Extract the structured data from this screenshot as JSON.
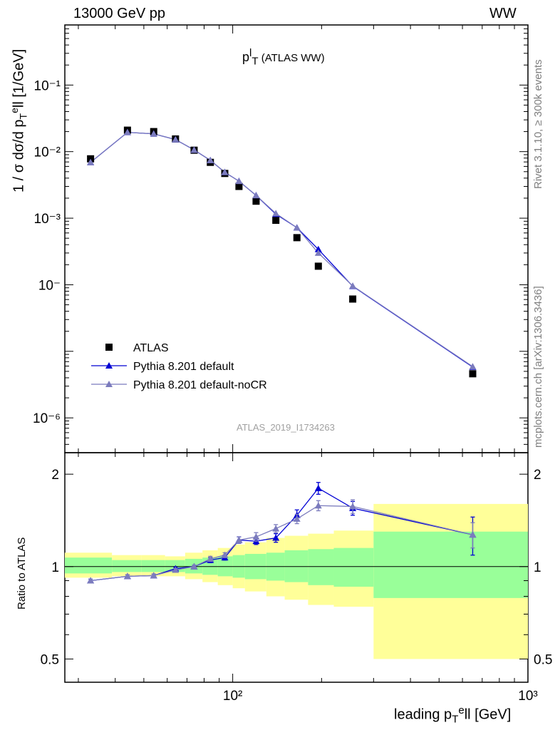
{
  "header": {
    "left": "13000 GeV pp",
    "right": "WW"
  },
  "side_texts": {
    "rivet": "Rivet 3.1.10, ≥ 300k events",
    "mcplots": "mcplots.cern.ch [arXiv:1306.3436]"
  },
  "plot_title": {
    "main": "p",
    "sup": "l",
    "sub": "T",
    "suffix": " (ATLAS WW)"
  },
  "watermark": "ATLAS_2019_I1734263",
  "y_label_main": "1 / σ  dσ/d p",
  "y_label_main_sub": "T",
  "y_label_main_sup": "e",
  "y_label_main_tail": "ll [1/GeV]",
  "y_label_ratio": "Ratio to ATLAS",
  "x_label": "leading p",
  "x_label_sub": "T",
  "x_label_sup": "e",
  "x_label_tail": "ll [GeV]",
  "colors": {
    "data": "#000000",
    "pythia_default": "#0000d4",
    "pythia_nocr": "#7b7bbd",
    "band_inner": "#99ff99",
    "band_outer": "#ffff99"
  },
  "chart_data": [
    {
      "type": "scatter",
      "panel": "main",
      "log_x": true,
      "log_y": true,
      "xlim": [
        27,
        1000
      ],
      "ylim": [
        3e-07,
        0.8
      ],
      "y_tick_labels": [
        "10⁻¹",
        "10⁻²",
        "10⁻³",
        "10⁻",
        "10⁻⁶"
      ],
      "y_tick_values": [
        0.1,
        0.01,
        0.001,
        0.0001,
        1e-06
      ],
      "legend_position": "bottom-left",
      "series": [
        {
          "name": "ATLAS",
          "marker": "square",
          "x": [
            33,
            44,
            54,
            64,
            74,
            84,
            94,
            105,
            120,
            140,
            165,
            195,
            255,
            650
          ],
          "values": [
            0.0078,
            0.021,
            0.02,
            0.0155,
            0.0105,
            0.0069,
            0.0047,
            0.003,
            0.0018,
            0.00093,
            0.00051,
            0.00019,
            6.1e-05,
            4.6e-06
          ]
        },
        {
          "name": "Pythia 8.201 default",
          "marker": "triangle",
          "x": [
            33,
            44,
            54,
            64,
            74,
            84,
            94,
            105,
            120,
            140,
            165,
            195,
            255,
            650
          ],
          "values": [
            0.0069,
            0.0195,
            0.0185,
            0.0152,
            0.0106,
            0.0074,
            0.0049,
            0.0036,
            0.0022,
            0.00115,
            0.00072,
            0.00034,
            9.5e-05,
            5.8e-06
          ]
        },
        {
          "name": "Pythia 8.201 default-noCR",
          "marker": "triangle",
          "x": [
            33,
            44,
            54,
            64,
            74,
            84,
            94,
            105,
            120,
            140,
            165,
            195,
            255,
            650
          ],
          "values": [
            0.0069,
            0.0195,
            0.0185,
            0.0152,
            0.0106,
            0.0074,
            0.0049,
            0.0036,
            0.0022,
            0.00118,
            0.00072,
            0.0003,
            9.6e-05,
            5.9e-06
          ]
        }
      ]
    },
    {
      "type": "line",
      "panel": "ratio",
      "log_x": true,
      "xlim": [
        27,
        1000
      ],
      "ylim": [
        0.42,
        2.35
      ],
      "y_tick_labels": [
        "0.5",
        "1",
        "2"
      ],
      "y_tick_values": [
        0.5,
        1,
        2
      ],
      "x_tick_labels": [
        "10²",
        "10³"
      ],
      "x_tick_values": [
        100,
        1000
      ],
      "uncertainty_bins": [
        {
          "lo": 27,
          "hi": 39,
          "inner": [
            0.95,
            1.07
          ],
          "outer": [
            0.92,
            1.11
          ]
        },
        {
          "lo": 39,
          "hi": 49,
          "inner": [
            0.96,
            1.05
          ],
          "outer": [
            0.93,
            1.09
          ]
        },
        {
          "lo": 49,
          "hi": 59,
          "inner": [
            0.96,
            1.05
          ],
          "outer": [
            0.93,
            1.09
          ]
        },
        {
          "lo": 59,
          "hi": 69,
          "inner": [
            0.96,
            1.05
          ],
          "outer": [
            0.93,
            1.08
          ]
        },
        {
          "lo": 69,
          "hi": 79,
          "inner": [
            0.95,
            1.06
          ],
          "outer": [
            0.91,
            1.11
          ]
        },
        {
          "lo": 79,
          "hi": 89,
          "inner": [
            0.94,
            1.07
          ],
          "outer": [
            0.89,
            1.13
          ]
        },
        {
          "lo": 89,
          "hi": 100,
          "inner": [
            0.93,
            1.08
          ],
          "outer": [
            0.87,
            1.15
          ]
        },
        {
          "lo": 100,
          "hi": 110,
          "inner": [
            0.92,
            1.09
          ],
          "outer": [
            0.85,
            1.18
          ]
        },
        {
          "lo": 110,
          "hi": 130,
          "inner": [
            0.91,
            1.1
          ],
          "outer": [
            0.83,
            1.2
          ]
        },
        {
          "lo": 130,
          "hi": 150,
          "inner": [
            0.9,
            1.11
          ],
          "outer": [
            0.8,
            1.24
          ]
        },
        {
          "lo": 150,
          "hi": 180,
          "inner": [
            0.89,
            1.13
          ],
          "outer": [
            0.78,
            1.26
          ]
        },
        {
          "lo": 180,
          "hi": 220,
          "inner": [
            0.87,
            1.14
          ],
          "outer": [
            0.75,
            1.28
          ]
        },
        {
          "lo": 220,
          "hi": 300,
          "inner": [
            0.86,
            1.15
          ],
          "outer": [
            0.74,
            1.31
          ]
        },
        {
          "lo": 300,
          "hi": 1000,
          "inner": [
            0.79,
            1.3
          ],
          "outer": [
            0.5,
            1.6
          ]
        }
      ],
      "series": [
        {
          "name": "Pythia 8.201 default",
          "x": [
            33,
            44,
            54,
            64,
            74,
            84,
            94,
            105,
            120,
            140,
            165,
            195,
            255,
            650
          ],
          "values": [
            0.9,
            0.93,
            0.935,
            0.985,
            1.0,
            1.05,
            1.07,
            1.22,
            1.21,
            1.24,
            1.47,
            1.8,
            1.55,
            1.27
          ],
          "errors": [
            0.01,
            0.01,
            0.01,
            0.01,
            0.01,
            0.02,
            0.02,
            0.03,
            0.03,
            0.04,
            0.06,
            0.08,
            0.08,
            0.18
          ]
        },
        {
          "name": "Pythia 8.201 default-noCR",
          "x": [
            33,
            44,
            54,
            64,
            74,
            84,
            94,
            105,
            120,
            140,
            165,
            195,
            255,
            650
          ],
          "values": [
            0.9,
            0.93,
            0.935,
            0.975,
            1.0,
            1.06,
            1.09,
            1.22,
            1.25,
            1.33,
            1.43,
            1.58,
            1.57,
            1.27
          ],
          "errors": [
            0.01,
            0.01,
            0.01,
            0.01,
            0.01,
            0.02,
            0.02,
            0.03,
            0.04,
            0.04,
            0.05,
            0.06,
            0.08,
            0.12
          ]
        }
      ]
    }
  ]
}
